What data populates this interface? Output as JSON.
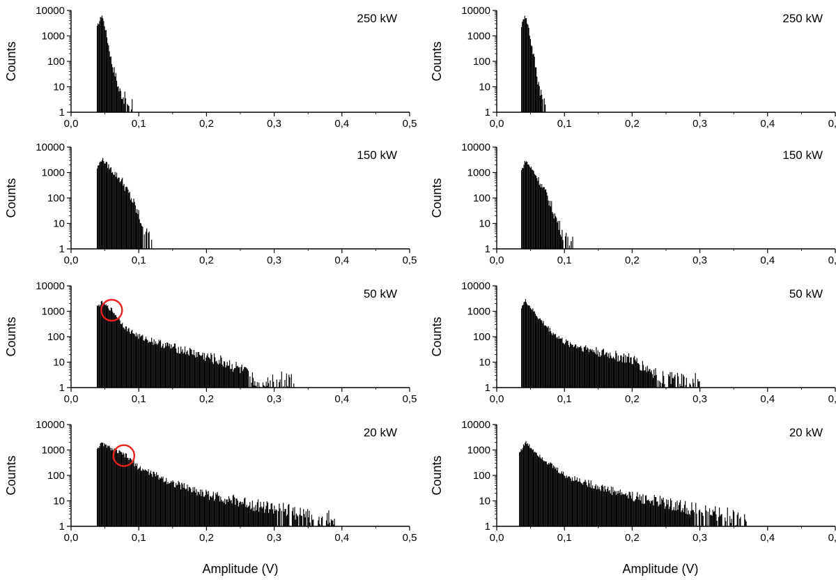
{
  "chart_data": {
    "type": "bar",
    "layout": "4 rows x 2 columns of log-scale amplitude histograms",
    "x_axis": {
      "label": "Amplitude (V)",
      "range": [
        0.0,
        0.5
      ],
      "ticks": [
        0.0,
        0.1,
        0.2,
        0.3,
        0.4,
        0.5
      ],
      "tick_labels": [
        "0,0",
        "0,1",
        "0,2",
        "0,3",
        "0,4",
        "0,5"
      ]
    },
    "y_axis": {
      "label": "Counts",
      "scale": "log",
      "range": [
        1,
        10000
      ],
      "ticks": [
        1,
        10,
        100,
        1000,
        10000
      ],
      "tick_labels": [
        "1",
        "10",
        "100",
        "1000",
        "10000"
      ]
    },
    "grid": false,
    "bar_color": "#000000",
    "highlight_color": "#e8221e",
    "panels": [
      {
        "label": "250 kW",
        "row": 0,
        "col": 0,
        "threshold": 0.038,
        "peak_x": 0.045,
        "peak_count": 7000,
        "points": [
          [
            0.038,
            2200
          ],
          [
            0.045,
            7000
          ],
          [
            0.05,
            2000
          ],
          [
            0.055,
            400
          ],
          [
            0.06,
            80
          ],
          [
            0.065,
            30
          ],
          [
            0.07,
            8
          ],
          [
            0.075,
            5
          ],
          [
            0.08,
            3
          ],
          [
            0.085,
            2
          ]
        ],
        "tail_end": 0.09,
        "markers": []
      },
      {
        "label": "250 kW",
        "row": 0,
        "col": 1,
        "threshold": 0.036,
        "peak_x": 0.041,
        "peak_count": 7000,
        "points": [
          [
            0.036,
            2500
          ],
          [
            0.041,
            7000
          ],
          [
            0.046,
            2500
          ],
          [
            0.05,
            600
          ],
          [
            0.055,
            120
          ],
          [
            0.06,
            20
          ],
          [
            0.065,
            6
          ],
          [
            0.07,
            2
          ]
        ],
        "tail_end": 0.072,
        "markers": []
      },
      {
        "label": "150 kW",
        "row": 1,
        "col": 0,
        "threshold": 0.038,
        "peak_x": 0.045,
        "peak_count": 3500,
        "points": [
          [
            0.038,
            1500
          ],
          [
            0.045,
            3500
          ],
          [
            0.06,
            1200
          ],
          [
            0.075,
            450
          ],
          [
            0.09,
            80
          ],
          [
            0.1,
            18
          ],
          [
            0.11,
            5
          ],
          [
            0.115,
            3
          ],
          [
            0.12,
            2
          ]
        ],
        "tail_end": 0.125,
        "markers": []
      },
      {
        "label": "150 kW",
        "row": 1,
        "col": 1,
        "threshold": 0.036,
        "peak_x": 0.042,
        "peak_count": 3000,
        "points": [
          [
            0.036,
            1200
          ],
          [
            0.042,
            3000
          ],
          [
            0.055,
            1000
          ],
          [
            0.07,
            200
          ],
          [
            0.08,
            50
          ],
          [
            0.09,
            10
          ],
          [
            0.1,
            3
          ],
          [
            0.11,
            2
          ]
        ],
        "tail_end": 0.115,
        "markers": []
      },
      {
        "label": "50 kW",
        "row": 2,
        "col": 0,
        "threshold": 0.038,
        "peak_x": 0.045,
        "peak_count": 2200,
        "points": [
          [
            0.038,
            1500
          ],
          [
            0.045,
            2200
          ],
          [
            0.06,
            1100
          ],
          [
            0.08,
            220
          ],
          [
            0.1,
            100
          ],
          [
            0.15,
            38
          ],
          [
            0.2,
            16
          ],
          [
            0.23,
            9
          ],
          [
            0.25,
            5
          ],
          [
            0.27,
            2
          ],
          [
            0.3,
            2
          ],
          [
            0.33,
            2
          ]
        ],
        "tail_end": 0.33,
        "markers": [
          {
            "x": 0.06,
            "y": 1100
          }
        ]
      },
      {
        "label": "50 kW",
        "row": 2,
        "col": 1,
        "threshold": 0.036,
        "peak_x": 0.042,
        "peak_count": 2600,
        "points": [
          [
            0.036,
            1500
          ],
          [
            0.042,
            2600
          ],
          [
            0.06,
            600
          ],
          [
            0.08,
            160
          ],
          [
            0.1,
            60
          ],
          [
            0.15,
            25
          ],
          [
            0.2,
            12
          ],
          [
            0.22,
            6
          ],
          [
            0.24,
            3
          ],
          [
            0.26,
            2
          ],
          [
            0.29,
            2
          ]
        ],
        "tail_end": 0.3,
        "markers": []
      },
      {
        "label": "20 kW",
        "row": 3,
        "col": 0,
        "threshold": 0.038,
        "peak_x": 0.045,
        "peak_count": 1800,
        "points": [
          [
            0.038,
            1200
          ],
          [
            0.045,
            1800
          ],
          [
            0.06,
            1100
          ],
          [
            0.08,
            600
          ],
          [
            0.1,
            200
          ],
          [
            0.15,
            50
          ],
          [
            0.2,
            18
          ],
          [
            0.25,
            9
          ],
          [
            0.3,
            5
          ],
          [
            0.35,
            3
          ],
          [
            0.38,
            2
          ]
        ],
        "tail_end": 0.39,
        "markers": [
          {
            "x": 0.078,
            "y": 600
          }
        ]
      },
      {
        "label": "20 kW",
        "row": 3,
        "col": 1,
        "threshold": 0.033,
        "peak_x": 0.042,
        "peak_count": 2000,
        "points": [
          [
            0.033,
            800
          ],
          [
            0.042,
            2000
          ],
          [
            0.06,
            700
          ],
          [
            0.08,
            250
          ],
          [
            0.1,
            100
          ],
          [
            0.15,
            35
          ],
          [
            0.2,
            15
          ],
          [
            0.25,
            8
          ],
          [
            0.3,
            4
          ],
          [
            0.33,
            3
          ],
          [
            0.36,
            2
          ]
        ],
        "tail_end": 0.37,
        "markers": []
      }
    ]
  }
}
